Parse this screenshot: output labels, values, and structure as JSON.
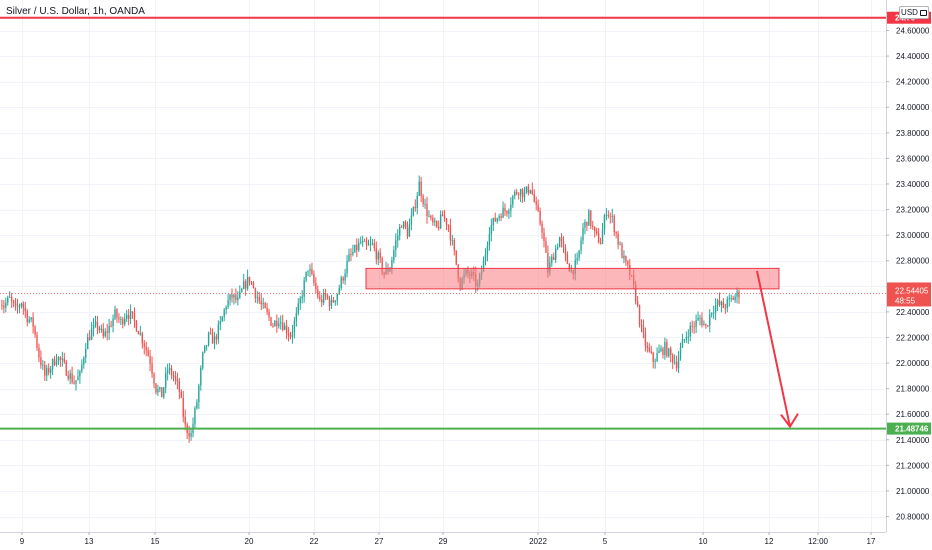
{
  "header": {
    "symbol_title": "Silver / U.S. Dollar, 1h, OANDA",
    "currency_label": "USD"
  },
  "colors": {
    "up": "#26a69a",
    "down": "#ef5350",
    "red_line": "#f23645",
    "green_line": "#4caf50",
    "zone_fill": "#f77c80",
    "zone_border": "#f23645",
    "arrow": "#f23645",
    "grid": "#f0f3fa",
    "axis_text": "#131722"
  },
  "chart_data": {
    "type": "candlestick",
    "title": "Silver / U.S. Dollar, 1h, OANDA",
    "y_ticks": [
      "24.60000",
      "24.40000",
      "24.20000",
      "24.00000",
      "23.80000",
      "23.60000",
      "23.40000",
      "23.20000",
      "23.00000",
      "22.80000",
      "22.60000",
      "22.40000",
      "22.20000",
      "22.00000",
      "21.80000",
      "21.60000",
      "21.40000",
      "21.20000",
      "21.00000",
      "20.80000"
    ],
    "ylim": [
      20.68,
      24.78
    ],
    "x_ticks": [
      "9",
      "13",
      "15",
      "20",
      "22",
      "27",
      "29",
      "2022",
      "5",
      "10",
      "12",
      "12:00",
      "17"
    ],
    "current_price": {
      "value": 22.54405,
      "label": "22.54405",
      "countdown": "48:55"
    },
    "horizontal_levels": [
      {
        "name": "resistance",
        "value": 24.7,
        "label": "24.70"
      },
      {
        "name": "support",
        "value": 21.48746,
        "label": "21.48746"
      }
    ],
    "zone": {
      "from_price": 22.58,
      "to_price": 22.74
    },
    "arrow": {
      "from_price": 22.72,
      "to_price": 21.48746
    },
    "price_path": [
      [
        0,
        22.52
      ],
      [
        3,
        22.45
      ],
      [
        6,
        22.5
      ],
      [
        9,
        22.41
      ],
      [
        12,
        22.48
      ],
      [
        15,
        22.36
      ],
      [
        18,
        22.3
      ],
      [
        21,
        22.06
      ],
      [
        24,
        21.9
      ],
      [
        27,
        21.97
      ],
      [
        30,
        22.05
      ],
      [
        33,
        22.0
      ],
      [
        36,
        21.92
      ],
      [
        39,
        21.85
      ],
      [
        42,
        21.9
      ],
      [
        45,
        22.15
      ],
      [
        48,
        22.25
      ],
      [
        51,
        22.3
      ],
      [
        54,
        22.2
      ],
      [
        57,
        22.28
      ],
      [
        60,
        22.38
      ],
      [
        63,
        22.32
      ],
      [
        66,
        22.4
      ],
      [
        69,
        22.35
      ],
      [
        72,
        22.26
      ],
      [
        75,
        22.15
      ],
      [
        78,
        22.02
      ],
      [
        81,
        21.8
      ],
      [
        84,
        21.75
      ],
      [
        87,
        21.95
      ],
      [
        90,
        21.9
      ],
      [
        93,
        21.78
      ],
      [
        96,
        21.5
      ],
      [
        99,
        21.44
      ],
      [
        102,
        21.7
      ],
      [
        105,
        22.05
      ],
      [
        108,
        22.2
      ],
      [
        111,
        22.18
      ],
      [
        114,
        22.3
      ],
      [
        117,
        22.46
      ],
      [
        120,
        22.52
      ],
      [
        123,
        22.48
      ],
      [
        126,
        22.6
      ],
      [
        129,
        22.66
      ],
      [
        132,
        22.55
      ],
      [
        135,
        22.45
      ],
      [
        138,
        22.38
      ],
      [
        141,
        22.3
      ],
      [
        144,
        22.35
      ],
      [
        147,
        22.28
      ],
      [
        150,
        22.22
      ],
      [
        153,
        22.36
      ],
      [
        156,
        22.55
      ],
      [
        159,
        22.75
      ],
      [
        162,
        22.62
      ],
      [
        165,
        22.48
      ],
      [
        168,
        22.52
      ],
      [
        171,
        22.46
      ],
      [
        174,
        22.55
      ],
      [
        177,
        22.68
      ],
      [
        180,
        22.82
      ],
      [
        183,
        22.88
      ],
      [
        186,
        22.94
      ],
      [
        189,
        22.9
      ],
      [
        192,
        22.92
      ],
      [
        195,
        22.82
      ],
      [
        198,
        22.7
      ],
      [
        201,
        22.75
      ],
      [
        204,
        22.95
      ],
      [
        207,
        23.1
      ],
      [
        210,
        23.02
      ],
      [
        213,
        23.18
      ],
      [
        216,
        23.4
      ],
      [
        219,
        23.22
      ],
      [
        222,
        23.1
      ],
      [
        225,
        23.05
      ],
      [
        228,
        23.15
      ],
      [
        231,
        23.08
      ],
      [
        234,
        22.85
      ],
      [
        237,
        22.62
      ],
      [
        240,
        22.7
      ],
      [
        243,
        22.68
      ],
      [
        246,
        22.6
      ],
      [
        249,
        22.78
      ],
      [
        252,
        23.05
      ],
      [
        255,
        23.12
      ],
      [
        258,
        23.18
      ],
      [
        261,
        23.2
      ],
      [
        264,
        23.3
      ],
      [
        267,
        23.36
      ],
      [
        270,
        23.32
      ],
      [
        273,
        23.38
      ],
      [
        276,
        23.2
      ],
      [
        279,
        23.05
      ],
      [
        282,
        22.72
      ],
      [
        285,
        22.85
      ],
      [
        288,
        22.98
      ],
      [
        291,
        22.82
      ],
      [
        294,
        22.72
      ],
      [
        297,
        22.78
      ],
      [
        300,
        23.05
      ],
      [
        303,
        23.15
      ],
      [
        306,
        23.0
      ],
      [
        309,
        22.95
      ],
      [
        312,
        23.2
      ],
      [
        315,
        23.12
      ],
      [
        318,
        22.95
      ],
      [
        321,
        22.8
      ],
      [
        324,
        22.7
      ],
      [
        327,
        22.52
      ],
      [
        330,
        22.25
      ],
      [
        333,
        22.1
      ],
      [
        336,
        22.02
      ],
      [
        339,
        22.08
      ],
      [
        342,
        22.12
      ],
      [
        345,
        22.05
      ],
      [
        348,
        22.0
      ],
      [
        351,
        22.15
      ],
      [
        354,
        22.25
      ],
      [
        357,
        22.3
      ],
      [
        360,
        22.35
      ],
      [
        363,
        22.28
      ],
      [
        366,
        22.42
      ],
      [
        369,
        22.46
      ],
      [
        372,
        22.44
      ],
      [
        375,
        22.48
      ],
      [
        378,
        22.52
      ],
      [
        380,
        22.54405
      ]
    ]
  }
}
